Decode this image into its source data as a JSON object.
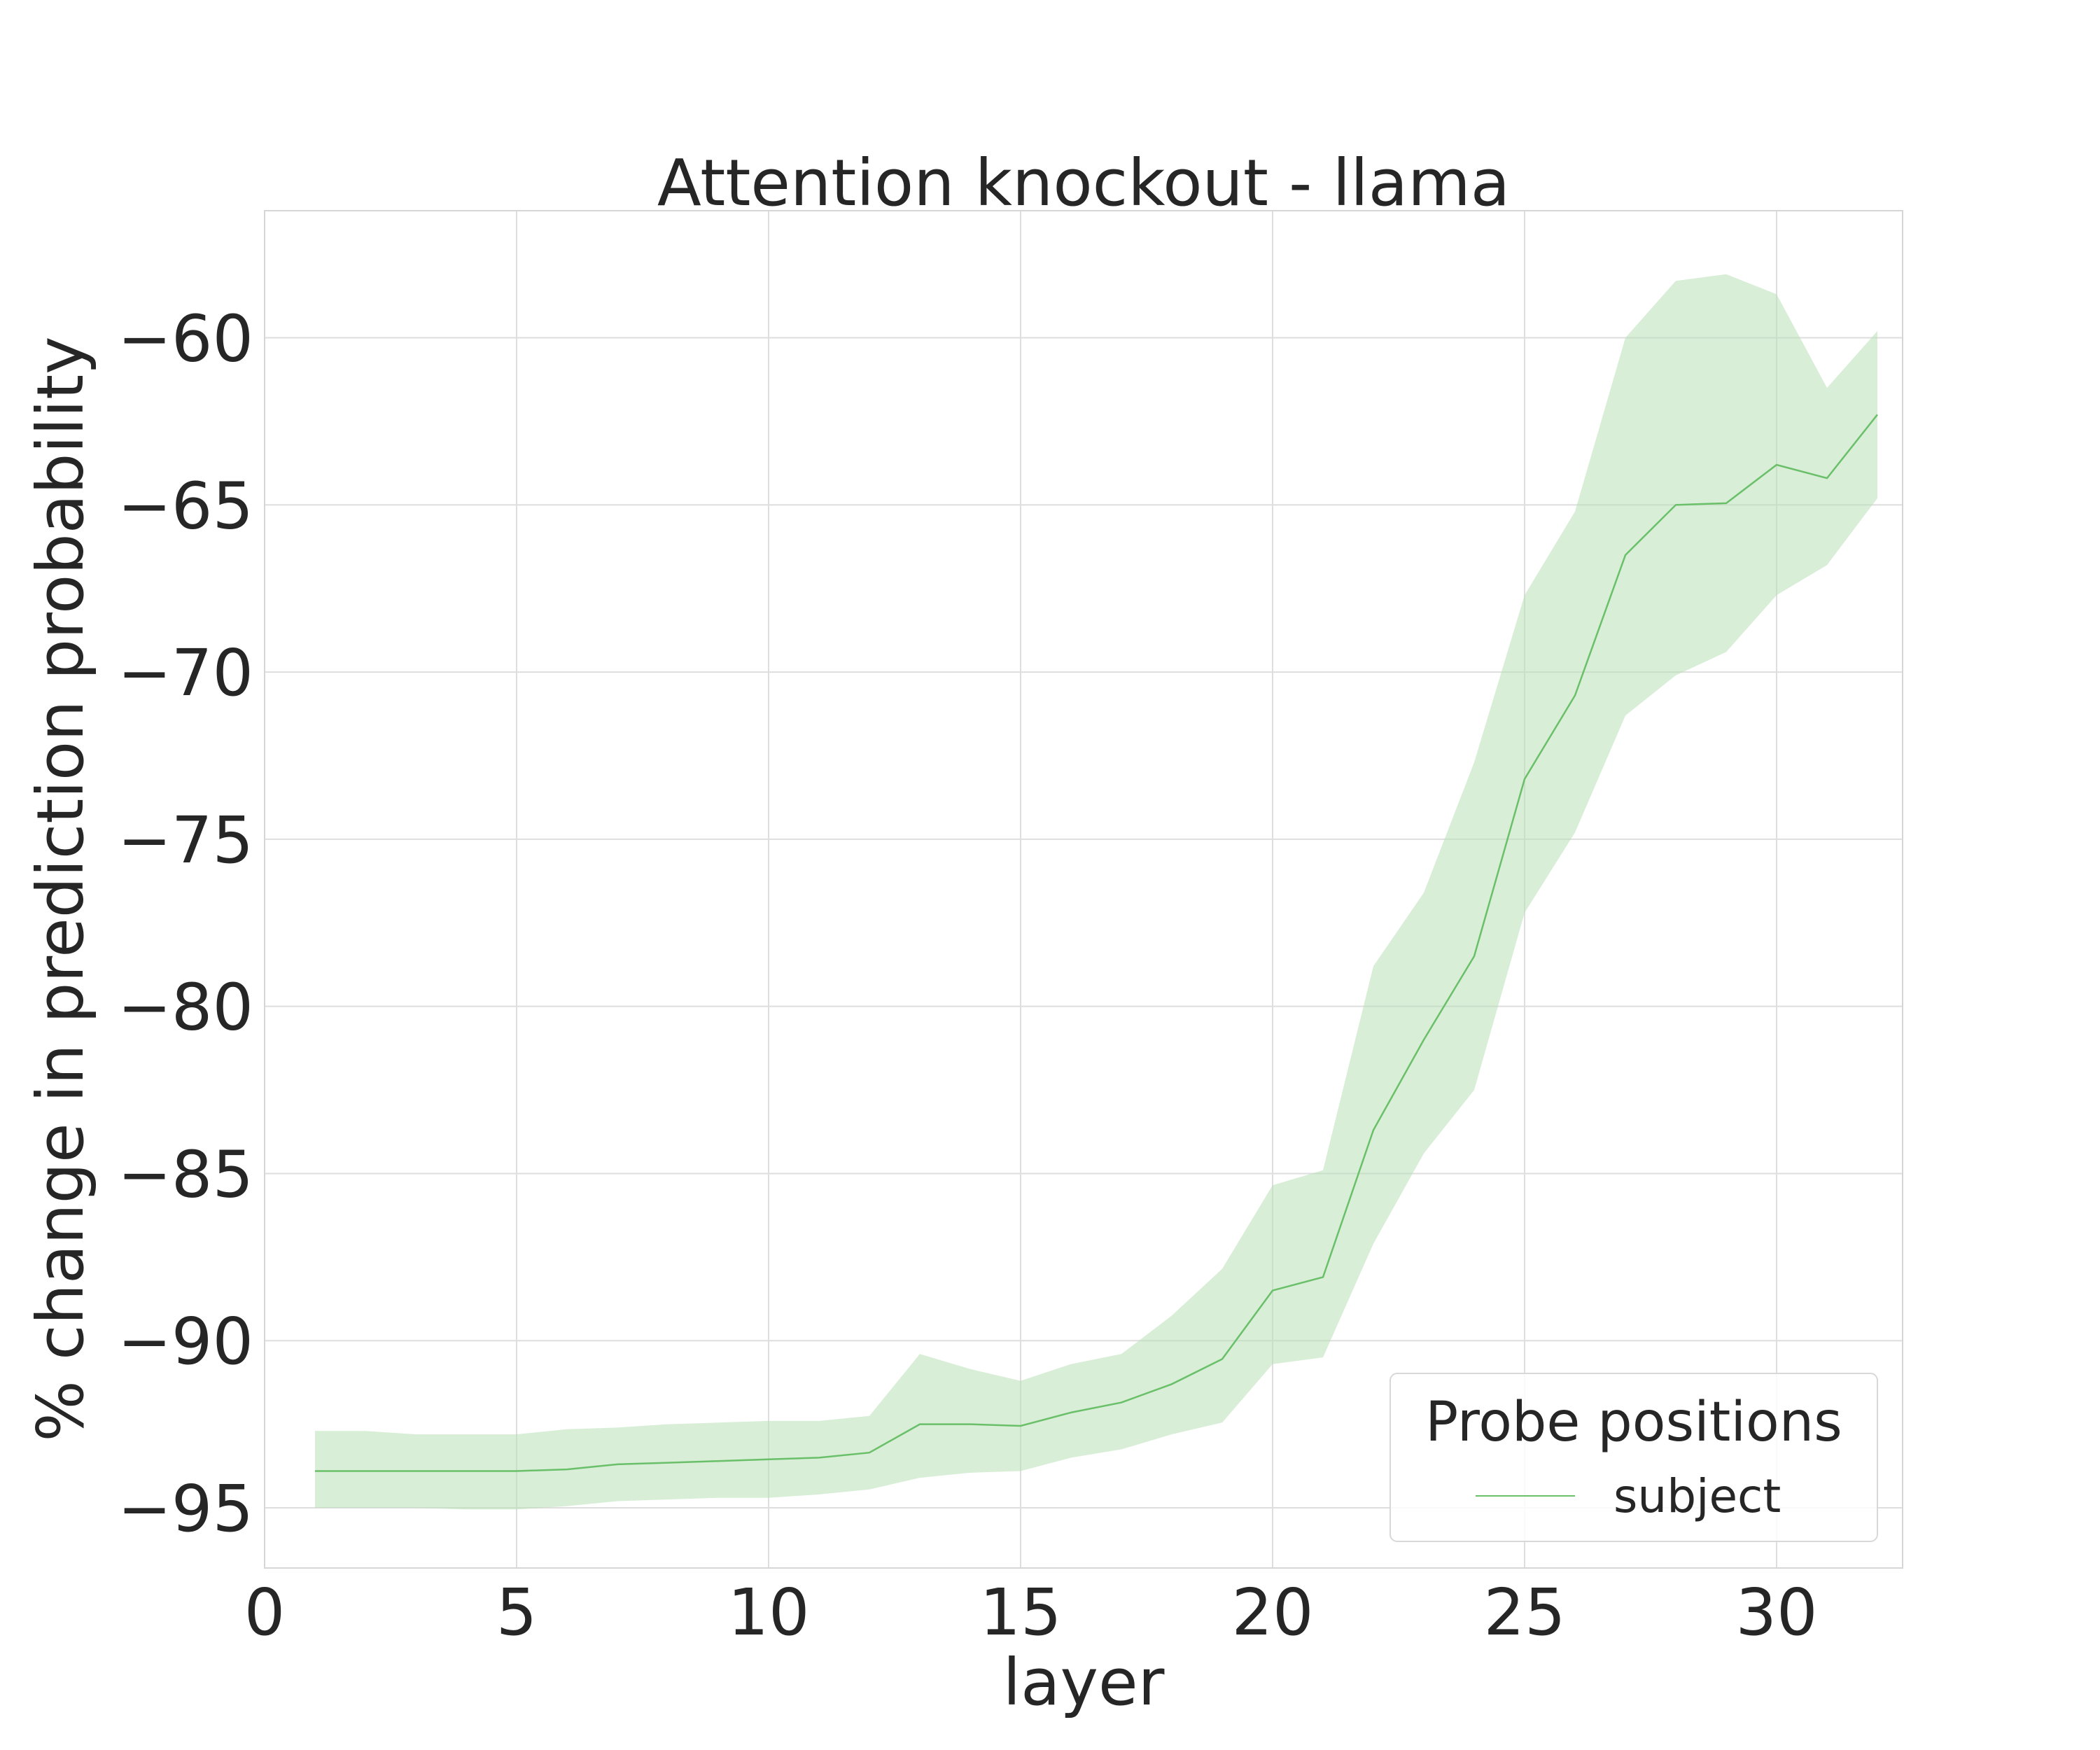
{
  "chart_data": {
    "type": "line",
    "title": "Attention knockout - llama",
    "xlabel": "layer",
    "ylabel": "% change in prediction probability",
    "xlim": [
      0,
      32.5
    ],
    "ylim": [
      -96.8,
      -56.2
    ],
    "xticks": [
      0,
      5,
      10,
      15,
      20,
      25,
      30
    ],
    "yticks": [
      -95,
      -90,
      -85,
      -80,
      -75,
      -70,
      -65,
      -60
    ],
    "xtick_labels": [
      "0",
      "5",
      "10",
      "15",
      "20",
      "25",
      "30"
    ],
    "ytick_labels": [
      "−95",
      "−90",
      "−85",
      "−80",
      "−75",
      "−70",
      "−65",
      "−60"
    ],
    "grid": true,
    "legend": {
      "title": "Probe positions",
      "placement": "lower-right"
    },
    "series": [
      {
        "name": "subject",
        "color": "#6abf69",
        "band_color": "#b8e0b6",
        "x": [
          1,
          2,
          3,
          4,
          5,
          6,
          7,
          8,
          9,
          10,
          11,
          12,
          13,
          14,
          15,
          16,
          17,
          18,
          19,
          20,
          21,
          22,
          23,
          24,
          25,
          26,
          27,
          28,
          29,
          30,
          31,
          32
        ],
        "y": [
          -93.9,
          -93.9,
          -93.9,
          -93.9,
          -93.9,
          -93.85,
          -93.7,
          -93.65,
          -93.6,
          -93.55,
          -93.5,
          -93.35,
          -92.5,
          -92.5,
          -92.55,
          -92.15,
          -91.85,
          -91.3,
          -90.55,
          -88.5,
          -88.1,
          -83.7,
          -81.0,
          -78.5,
          -73.2,
          -70.7,
          -66.5,
          -65.0,
          -64.95,
          -63.8,
          -64.2,
          -62.3
        ],
        "lower": [
          -95.0,
          -95.0,
          -95.0,
          -95.05,
          -95.05,
          -94.95,
          -94.8,
          -94.75,
          -94.7,
          -94.7,
          -94.6,
          -94.45,
          -94.1,
          -93.95,
          -93.9,
          -93.5,
          -93.25,
          -92.8,
          -92.45,
          -90.7,
          -90.5,
          -87.1,
          -84.4,
          -82.5,
          -77.2,
          -74.8,
          -71.3,
          -70.1,
          -69.4,
          -67.7,
          -66.8,
          -64.8
        ],
        "upper": [
          -92.7,
          -92.7,
          -92.8,
          -92.8,
          -92.8,
          -92.65,
          -92.6,
          -92.5,
          -92.45,
          -92.4,
          -92.4,
          -92.25,
          -90.4,
          -90.85,
          -91.2,
          -90.7,
          -90.4,
          -89.25,
          -87.85,
          -85.35,
          -84.9,
          -78.8,
          -76.6,
          -72.7,
          -67.7,
          -65.2,
          -60.0,
          -58.3,
          -58.1,
          -58.7,
          -61.5,
          -59.8
        ]
      }
    ]
  }
}
